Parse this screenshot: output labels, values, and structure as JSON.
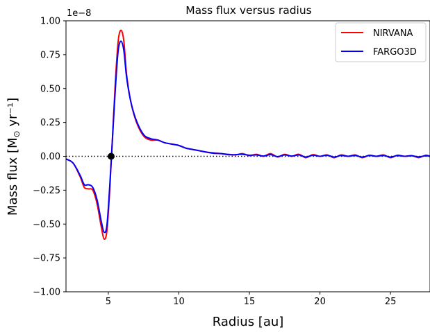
{
  "chart_data": {
    "type": "line",
    "title": "Mass flux versus radius",
    "xlabel": "Radius [au]",
    "ylabel_main": "Mass flux [M",
    "ylabel_sub": "⊙",
    "ylabel_tail": " yr⁻¹]",
    "offset_text": "1e−8",
    "xlim": [
      2,
      27.8
    ],
    "ylim": [
      -1.0,
      1.0
    ],
    "x_ticks": [
      5,
      10,
      15,
      20,
      25
    ],
    "x_tick_labels": [
      "5",
      "10",
      "15",
      "20",
      "25"
    ],
    "y_ticks": [
      -1.0,
      -0.75,
      -0.5,
      -0.25,
      0.0,
      0.25,
      0.5,
      0.75,
      1.0
    ],
    "y_tick_labels": [
      "−1.00",
      "−0.75",
      "−0.50",
      "−0.25",
      "0.00",
      "0.25",
      "0.50",
      "0.75",
      "1.00"
    ],
    "grid": false,
    "legend_position": "top-right",
    "series": [
      {
        "name": "NIRVANA",
        "color": "#ff0000",
        "x": [
          2.0,
          2.5,
          3.0,
          3.3,
          3.6,
          3.9,
          4.2,
          4.5,
          4.7,
          4.9,
          5.1,
          5.3,
          5.5,
          5.7,
          5.9,
          6.1,
          6.3,
          6.6,
          7.0,
          7.5,
          8.0,
          8.5,
          9.0,
          9.5,
          10.0,
          10.5,
          11.0,
          11.5,
          12.0,
          12.5,
          13.0,
          13.5,
          14.0,
          14.5,
          15.0,
          15.5,
          16.0,
          16.5,
          17.0,
          17.5,
          18.0,
          18.5,
          19.0,
          19.5,
          20.0,
          20.5,
          21.0,
          21.5,
          22.0,
          22.5,
          23.0,
          23.5,
          24.0,
          24.5,
          25.0,
          25.5,
          26.0,
          26.5,
          27.0,
          27.5,
          27.8
        ],
        "y": [
          -0.02,
          -0.05,
          -0.15,
          -0.23,
          -0.24,
          -0.25,
          -0.35,
          -0.52,
          -0.61,
          -0.55,
          -0.25,
          0.15,
          0.55,
          0.85,
          0.93,
          0.85,
          0.6,
          0.4,
          0.25,
          0.15,
          0.12,
          0.12,
          0.1,
          0.09,
          0.08,
          0.06,
          0.05,
          0.04,
          0.03,
          0.025,
          0.02,
          0.015,
          0.01,
          0.02,
          0.005,
          0.015,
          0.0,
          0.02,
          -0.005,
          0.015,
          0.0,
          0.015,
          -0.01,
          0.012,
          0.0,
          0.01,
          -0.01,
          0.01,
          0.0,
          0.01,
          -0.01,
          0.008,
          0.0,
          0.01,
          -0.01,
          0.008,
          0.0,
          0.005,
          -0.01,
          0.008,
          0.0
        ]
      },
      {
        "name": "FARGO3D",
        "color": "#0000ff",
        "x": [
          2.0,
          2.5,
          3.0,
          3.3,
          3.6,
          3.9,
          4.2,
          4.5,
          4.7,
          4.9,
          5.1,
          5.3,
          5.5,
          5.7,
          5.9,
          6.1,
          6.3,
          6.6,
          7.0,
          7.5,
          8.0,
          8.5,
          9.0,
          9.5,
          10.0,
          10.5,
          11.0,
          11.5,
          12.0,
          12.5,
          13.0,
          13.5,
          14.0,
          14.5,
          15.0,
          15.5,
          16.0,
          16.5,
          17.0,
          17.5,
          18.0,
          18.5,
          19.0,
          19.5,
          20.0,
          20.5,
          21.0,
          21.5,
          22.0,
          22.5,
          23.0,
          23.5,
          24.0,
          24.5,
          25.0,
          25.5,
          26.0,
          26.5,
          27.0,
          27.5,
          27.8
        ],
        "y": [
          -0.02,
          -0.05,
          -0.14,
          -0.21,
          -0.21,
          -0.23,
          -0.32,
          -0.48,
          -0.56,
          -0.51,
          -0.22,
          0.14,
          0.5,
          0.78,
          0.85,
          0.78,
          0.58,
          0.4,
          0.26,
          0.16,
          0.13,
          0.12,
          0.1,
          0.09,
          0.08,
          0.06,
          0.05,
          0.04,
          0.03,
          0.022,
          0.02,
          0.012,
          0.012,
          0.015,
          0.008,
          0.01,
          0.002,
          0.012,
          -0.002,
          0.01,
          0.002,
          0.01,
          -0.005,
          0.008,
          0.0,
          0.008,
          -0.005,
          0.006,
          0.0,
          0.006,
          -0.005,
          0.006,
          0.0,
          0.006,
          -0.005,
          0.005,
          0.0,
          0.004,
          -0.004,
          0.004,
          0.0
        ]
      }
    ],
    "reference_line": {
      "y": 0.0,
      "style": "dotted",
      "color": "#000000"
    },
    "marker_point": {
      "x": 5.2,
      "y": 0.0,
      "color": "#000000"
    }
  }
}
